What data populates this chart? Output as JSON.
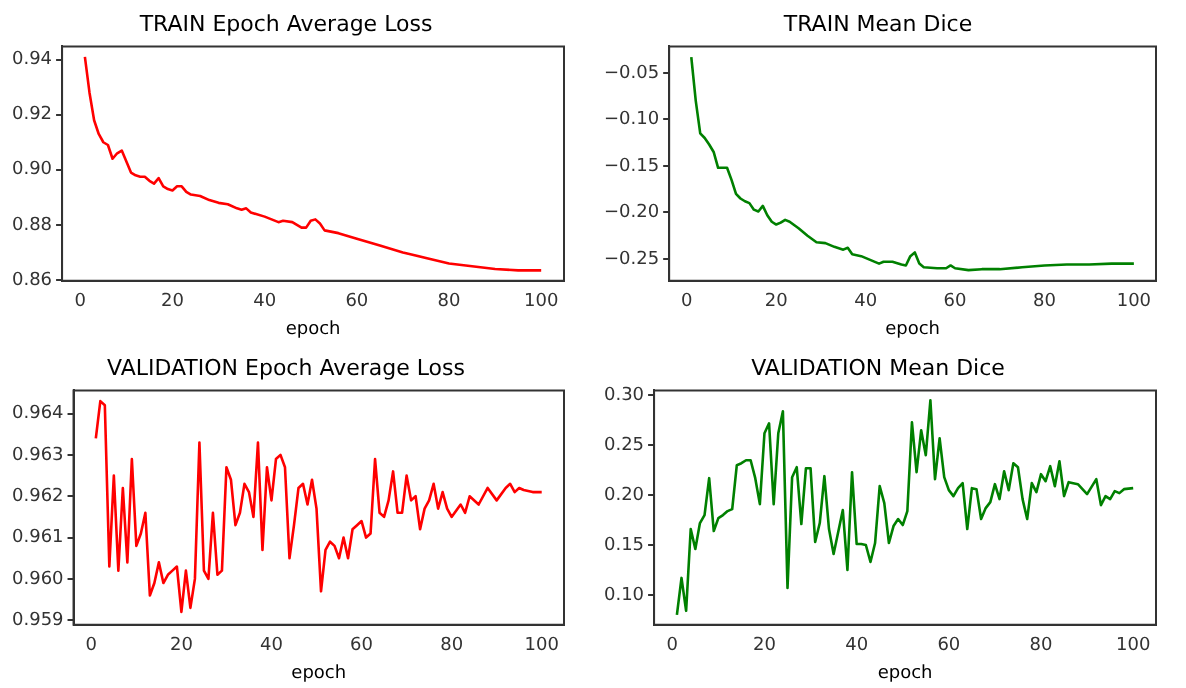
{
  "chart_data": [
    {
      "type": "line",
      "title": "TRAIN Epoch Average Loss",
      "xlabel": "epoch",
      "xlim": [
        -3.95,
        104.95
      ],
      "xticks": [
        0,
        20,
        40,
        60,
        80,
        100
      ],
      "ylim": [
        0.8597,
        0.9448
      ],
      "yticks": [
        0.86,
        0.88,
        {
          "value": 0.9,
          "label": "0.90"
        },
        0.92,
        0.94
      ],
      "grid": false,
      "legend": false,
      "marker": "none",
      "line_style": "solid",
      "series": [
        {
          "color": "#ff0000",
          "x": [
            1,
            2,
            3,
            4,
            5,
            6,
            7,
            8,
            9,
            10,
            11,
            12,
            13,
            14,
            15,
            16,
            17,
            18,
            19,
            20,
            21,
            22,
            23,
            24,
            26,
            28,
            30,
            32,
            34,
            35,
            36,
            37,
            40,
            43,
            44,
            46,
            48,
            49,
            50,
            51,
            52,
            53,
            56,
            60,
            65,
            70,
            75,
            80,
            85,
            90,
            95,
            100
          ],
          "values": [
            0.941,
            0.928,
            0.918,
            0.913,
            0.91,
            0.909,
            0.904,
            0.906,
            0.907,
            0.903,
            0.899,
            0.898,
            0.8975,
            0.8975,
            0.896,
            0.895,
            0.897,
            0.894,
            0.893,
            0.8925,
            0.894,
            0.894,
            0.892,
            0.891,
            0.8905,
            0.889,
            0.888,
            0.8875,
            0.886,
            0.8855,
            0.886,
            0.8845,
            0.883,
            0.881,
            0.8815,
            0.881,
            0.879,
            0.879,
            0.8815,
            0.882,
            0.8805,
            0.878,
            0.877,
            0.875,
            0.8725,
            0.87,
            0.868,
            0.866,
            0.865,
            0.864,
            0.8635,
            0.8635
          ]
        }
      ]
    },
    {
      "type": "line",
      "title": "TRAIN Mean Dice",
      "xlabel": "epoch",
      "xlim": [
        -3.95,
        104.95
      ],
      "xticks": [
        0,
        20,
        40,
        60,
        80,
        100
      ],
      "ylim": [
        -0.2735,
        -0.0215
      ],
      "yticks": [
        {
          "value": -0.25,
          "label": "−0.25"
        },
        {
          "value": -0.2,
          "label": "−0.20"
        },
        {
          "value": -0.15,
          "label": "−0.15"
        },
        {
          "value": -0.1,
          "label": "−0.10"
        },
        {
          "value": -0.05,
          "label": "−0.05"
        }
      ],
      "grid": false,
      "legend": false,
      "marker": "none",
      "line_style": "solid",
      "series": [
        {
          "color": "#008000",
          "x": [
            1,
            2,
            3,
            4,
            5,
            6,
            7,
            8,
            9,
            10,
            11,
            12,
            13,
            14,
            15,
            16,
            17,
            18,
            19,
            20,
            21,
            22,
            23,
            25,
            27,
            29,
            31,
            33,
            35,
            36,
            37,
            39,
            41,
            43,
            44,
            46,
            48,
            49,
            50,
            51,
            52,
            53,
            56,
            58,
            59,
            60,
            63,
            66,
            70,
            75,
            80,
            85,
            90,
            95,
            100
          ],
          "values": [
            -0.033,
            -0.08,
            -0.115,
            -0.12,
            -0.127,
            -0.135,
            -0.152,
            -0.152,
            -0.152,
            -0.165,
            -0.18,
            -0.185,
            -0.188,
            -0.19,
            -0.197,
            -0.199,
            -0.193,
            -0.203,
            -0.21,
            -0.213,
            -0.211,
            -0.208,
            -0.21,
            -0.217,
            -0.225,
            -0.232,
            -0.233,
            -0.237,
            -0.24,
            -0.238,
            -0.245,
            -0.247,
            -0.251,
            -0.255,
            -0.253,
            -0.253,
            -0.256,
            -0.257,
            -0.247,
            -0.243,
            -0.255,
            -0.259,
            -0.26,
            -0.26,
            -0.257,
            -0.26,
            -0.262,
            -0.261,
            -0.261,
            -0.259,
            -0.257,
            -0.256,
            -0.256,
            -0.255,
            -0.255
          ]
        }
      ]
    },
    {
      "type": "line",
      "title": "VALIDATION Epoch Average Loss",
      "xlabel": "epoch",
      "xlim": [
        -3.95,
        104.95
      ],
      "xticks": [
        0,
        20,
        40,
        60,
        80,
        100
      ],
      "ylim": [
        0.95889,
        0.96456
      ],
      "yticks": [
        0.959,
        {
          "value": 0.96,
          "label": "0.960"
        },
        0.961,
        0.962,
        0.963,
        0.964
      ],
      "grid": false,
      "legend": false,
      "marker": "none",
      "line_style": "solid",
      "series": [
        {
          "color": "#ff0000",
          "x": [
            1,
            2,
            3,
            4,
            5,
            6,
            7,
            8,
            9,
            10,
            11,
            12,
            13,
            14,
            15,
            16,
            17,
            18,
            19,
            20,
            21,
            22,
            23,
            24,
            25,
            26,
            27,
            28,
            29,
            30,
            31,
            32,
            33,
            34,
            35,
            36,
            37,
            38,
            39,
            40,
            41,
            42,
            43,
            44,
            45,
            46,
            47,
            48,
            49,
            50,
            51,
            52,
            53,
            54,
            55,
            56,
            57,
            58,
            59,
            60,
            61,
            62,
            63,
            64,
            65,
            66,
            67,
            68,
            69,
            70,
            71,
            72,
            73,
            74,
            75,
            76,
            77,
            78,
            79,
            80,
            82,
            83,
            84,
            86,
            88,
            90,
            92,
            93,
            94,
            95,
            96,
            98,
            100
          ],
          "values": [
            0.9634,
            0.9643,
            0.9642,
            0.9603,
            0.9625,
            0.9602,
            0.9622,
            0.9604,
            0.9629,
            0.9608,
            0.9611,
            0.9616,
            0.9596,
            0.9599,
            0.9604,
            0.9599,
            0.9601,
            0.9602,
            0.9603,
            0.9592,
            0.9602,
            0.9593,
            0.96,
            0.9633,
            0.9602,
            0.96,
            0.9616,
            0.9601,
            0.9602,
            0.9627,
            0.9624,
            0.9613,
            0.9616,
            0.9623,
            0.9621,
            0.9615,
            0.9633,
            0.9607,
            0.9627,
            0.9619,
            0.9629,
            0.963,
            0.9627,
            0.9605,
            0.9613,
            0.9622,
            0.9623,
            0.9618,
            0.9624,
            0.9617,
            0.9597,
            0.9607,
            0.9609,
            0.9608,
            0.9605,
            0.961,
            0.9605,
            0.9612,
            0.9613,
            0.9614,
            0.961,
            0.9611,
            0.9629,
            0.9616,
            0.9615,
            0.9619,
            0.9626,
            0.9616,
            0.9616,
            0.9625,
            0.9619,
            0.962,
            0.9612,
            0.9617,
            0.9619,
            0.9623,
            0.9617,
            0.9621,
            0.9617,
            0.9615,
            0.9618,
            0.9616,
            0.962,
            0.9618,
            0.9622,
            0.9619,
            0.9622,
            0.9623,
            0.9621,
            0.9622,
            0.96215,
            0.9621,
            0.9621
          ]
        }
      ]
    },
    {
      "type": "line",
      "title": "VALIDATION Mean Dice",
      "xlabel": "epoch",
      "xlim": [
        -3.95,
        104.95
      ],
      "xticks": [
        0,
        20,
        40,
        60,
        80,
        100
      ],
      "ylim": [
        0.07,
        0.305
      ],
      "yticks": [
        {
          "value": 0.1,
          "label": "0.10"
        },
        0.15,
        {
          "value": 0.2,
          "label": "0.20"
        },
        0.25,
        {
          "value": 0.3,
          "label": "0.30"
        }
      ],
      "grid": false,
      "legend": false,
      "marker": "none",
      "line_style": "solid",
      "series": [
        {
          "color": "#008000",
          "x": [
            1,
            2,
            3,
            4,
            5,
            6,
            7,
            8,
            9,
            10,
            11,
            12,
            13,
            14,
            15,
            16,
            17,
            18,
            19,
            20,
            21,
            22,
            23,
            24,
            25,
            26,
            27,
            28,
            29,
            30,
            31,
            32,
            33,
            34,
            35,
            36,
            37,
            38,
            39,
            40,
            41,
            42,
            43,
            44,
            45,
            46,
            47,
            48,
            49,
            50,
            51,
            52,
            53,
            54,
            55,
            56,
            57,
            58,
            59,
            60,
            61,
            62,
            63,
            64,
            65,
            66,
            67,
            68,
            69,
            70,
            71,
            72,
            73,
            74,
            75,
            76,
            77,
            78,
            79,
            80,
            81,
            82,
            83,
            84,
            85,
            86,
            88,
            90,
            92,
            93,
            94,
            95,
            96,
            97,
            98,
            100
          ],
          "values": [
            0.08,
            0.117,
            0.084,
            0.166,
            0.146,
            0.172,
            0.18,
            0.217,
            0.164,
            0.177,
            0.18,
            0.184,
            0.186,
            0.23,
            0.232,
            0.235,
            0.235,
            0.217,
            0.191,
            0.262,
            0.272,
            0.191,
            0.262,
            0.284,
            0.107,
            0.218,
            0.228,
            0.171,
            0.227,
            0.227,
            0.153,
            0.172,
            0.219,
            0.166,
            0.141,
            0.163,
            0.185,
            0.125,
            0.223,
            0.151,
            0.151,
            0.15,
            0.133,
            0.152,
            0.209,
            0.192,
            0.152,
            0.169,
            0.176,
            0.17,
            0.184,
            0.273,
            0.223,
            0.265,
            0.24,
            0.295,
            0.216,
            0.257,
            0.218,
            0.205,
            0.199,
            0.207,
            0.212,
            0.166,
            0.207,
            0.206,
            0.176,
            0.187,
            0.193,
            0.211,
            0.196,
            0.224,
            0.205,
            0.232,
            0.228,
            0.196,
            0.176,
            0.212,
            0.203,
            0.221,
            0.214,
            0.229,
            0.209,
            0.234,
            0.199,
            0.213,
            0.211,
            0.201,
            0.216,
            0.19,
            0.199,
            0.196,
            0.204,
            0.202,
            0.206,
            0.207
          ]
        }
      ]
    }
  ]
}
